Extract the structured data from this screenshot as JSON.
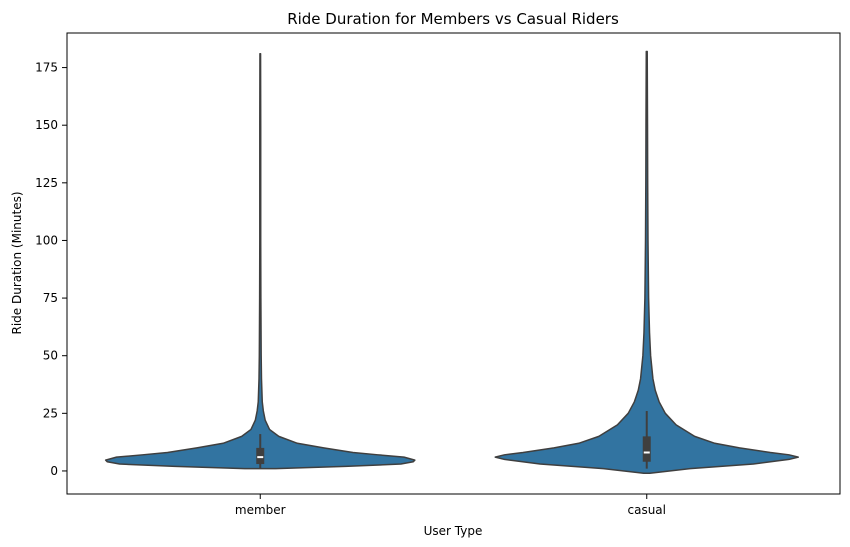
{
  "chart_data": {
    "type": "violin",
    "title": "Ride Duration for Members vs Casual Riders",
    "xlabel": "User Type",
    "ylabel": "Ride Duration (Minutes)",
    "categories": [
      "member",
      "casual"
    ],
    "ylim": [
      -10,
      190
    ],
    "yticks": [
      0,
      25,
      50,
      75,
      100,
      125,
      150,
      175
    ],
    "grid": false,
    "color": "#3274a1",
    "edge_color": "#3f3f3f",
    "violins": [
      {
        "category": "member",
        "min": 1,
        "q1": 3,
        "median": 6,
        "q3": 10,
        "whisker_low": 1,
        "whisker_high": 16,
        "max": 181,
        "profile": [
          [
            1,
            0.1
          ],
          [
            2,
            0.55
          ],
          [
            3,
            0.91
          ],
          [
            4,
            0.99
          ],
          [
            4.7,
            1.0
          ],
          [
            6,
            0.93
          ],
          [
            7,
            0.76
          ],
          [
            8,
            0.6
          ],
          [
            10,
            0.41
          ],
          [
            12,
            0.24
          ],
          [
            15,
            0.12
          ],
          [
            18,
            0.06
          ],
          [
            22,
            0.032
          ],
          [
            26,
            0.02
          ],
          [
            30,
            0.013
          ],
          [
            40,
            0.008
          ],
          [
            50,
            0.006
          ],
          [
            75,
            0.004
          ],
          [
            100,
            0.003
          ],
          [
            125,
            0.003
          ],
          [
            150,
            0.003
          ],
          [
            181,
            0.002
          ]
        ]
      },
      {
        "category": "casual",
        "min": -1,
        "q1": 4,
        "median": 8,
        "q3": 15,
        "whisker_low": 1,
        "whisker_high": 26,
        "max": 182,
        "profile": [
          [
            -1,
            0.02
          ],
          [
            1,
            0.28
          ],
          [
            3,
            0.69
          ],
          [
            5,
            0.92
          ],
          [
            6,
            0.98
          ],
          [
            7,
            0.92
          ],
          [
            8,
            0.8
          ],
          [
            10,
            0.6
          ],
          [
            12,
            0.44
          ],
          [
            15,
            0.31
          ],
          [
            20,
            0.19
          ],
          [
            25,
            0.12
          ],
          [
            30,
            0.08
          ],
          [
            35,
            0.055
          ],
          [
            40,
            0.04
          ],
          [
            50,
            0.025
          ],
          [
            60,
            0.018
          ],
          [
            75,
            0.012
          ],
          [
            100,
            0.008
          ],
          [
            125,
            0.006
          ],
          [
            150,
            0.005
          ],
          [
            182,
            0.003
          ]
        ]
      }
    ]
  }
}
